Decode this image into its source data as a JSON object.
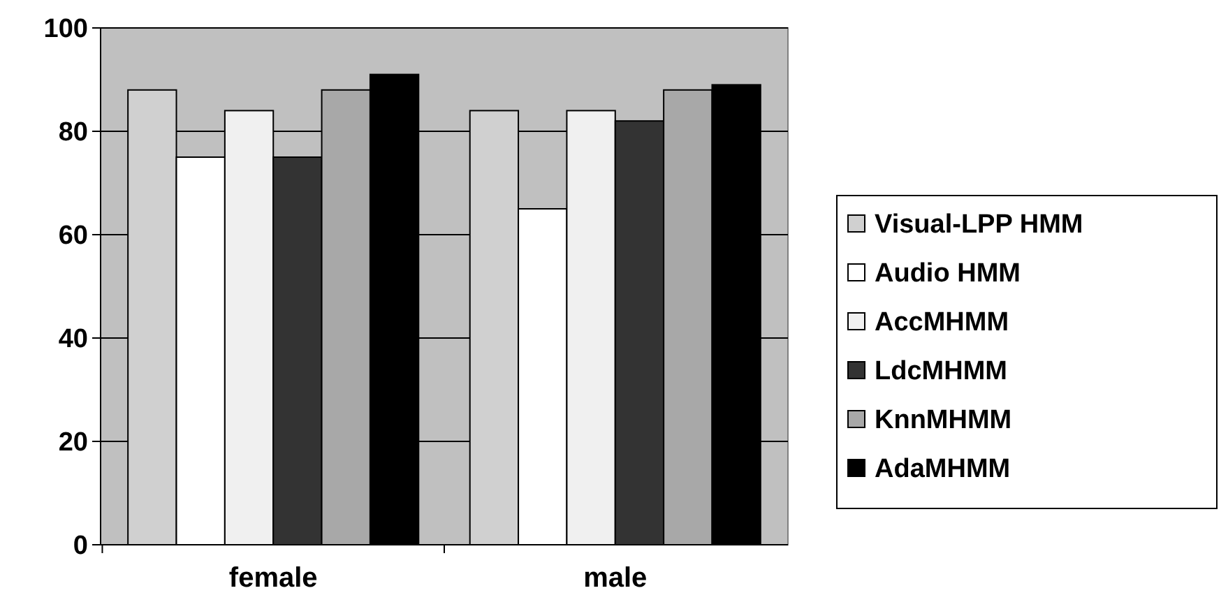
{
  "chart_data": {
    "type": "bar",
    "categories": [
      "female",
      "male"
    ],
    "series": [
      {
        "name": "Visual-LPP HMM",
        "color": "#d0d0d0",
        "values": [
          88,
          84
        ]
      },
      {
        "name": "Audio HMM",
        "color": "#ffffff",
        "values": [
          75,
          65
        ]
      },
      {
        "name": "AccMHMM",
        "color": "#f0f0f0",
        "values": [
          84,
          84
        ]
      },
      {
        "name": "LdcMHMM",
        "color": "#333333",
        "values": [
          75,
          82
        ]
      },
      {
        "name": "KnnMHMM",
        "color": "#a8a8a8",
        "values": [
          88,
          88
        ]
      },
      {
        "name": "AdaMHMM",
        "color": "#000000",
        "values": [
          91,
          89
        ]
      }
    ],
    "ylim": [
      0,
      100
    ],
    "yticks": [
      0,
      20,
      40,
      60,
      80,
      100
    ],
    "grid": "y",
    "legend": "right"
  }
}
